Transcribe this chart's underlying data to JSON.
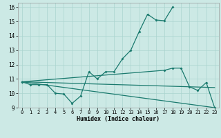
{
  "xlabel": "Humidex (Indice chaleur)",
  "xlim": [
    -0.5,
    23.5
  ],
  "ylim": [
    9,
    16.3
  ],
  "xticks": [
    0,
    1,
    2,
    3,
    4,
    5,
    6,
    7,
    8,
    9,
    10,
    11,
    12,
    13,
    14,
    15,
    16,
    17,
    18,
    19,
    20,
    21,
    22,
    23
  ],
  "yticks": [
    9,
    10,
    11,
    12,
    13,
    14,
    15,
    16
  ],
  "background_color": "#cce9e5",
  "grid_color": "#aad4cf",
  "line_color": "#1a7a6e",
  "line1_x": [
    0,
    1,
    2,
    3,
    4,
    5,
    6,
    7,
    8,
    9,
    10,
    11,
    12,
    13,
    14,
    15,
    16,
    17,
    18
  ],
  "line1_y": [
    10.8,
    10.6,
    10.6,
    10.6,
    10.0,
    9.95,
    9.3,
    9.8,
    11.5,
    11.0,
    11.5,
    11.5,
    12.4,
    13.0,
    14.3,
    15.5,
    15.1,
    15.05,
    16.0
  ],
  "line2_x": [
    0,
    23
  ],
  "line2_y": [
    10.8,
    9.0
  ],
  "line3_x": [
    0,
    23
  ],
  "line3_y": [
    10.8,
    10.4
  ],
  "line4_x": [
    0,
    17,
    18,
    19,
    20,
    21,
    22,
    23
  ],
  "line4_y": [
    10.8,
    11.6,
    11.75,
    11.75,
    10.45,
    10.2,
    10.75,
    9.0
  ]
}
